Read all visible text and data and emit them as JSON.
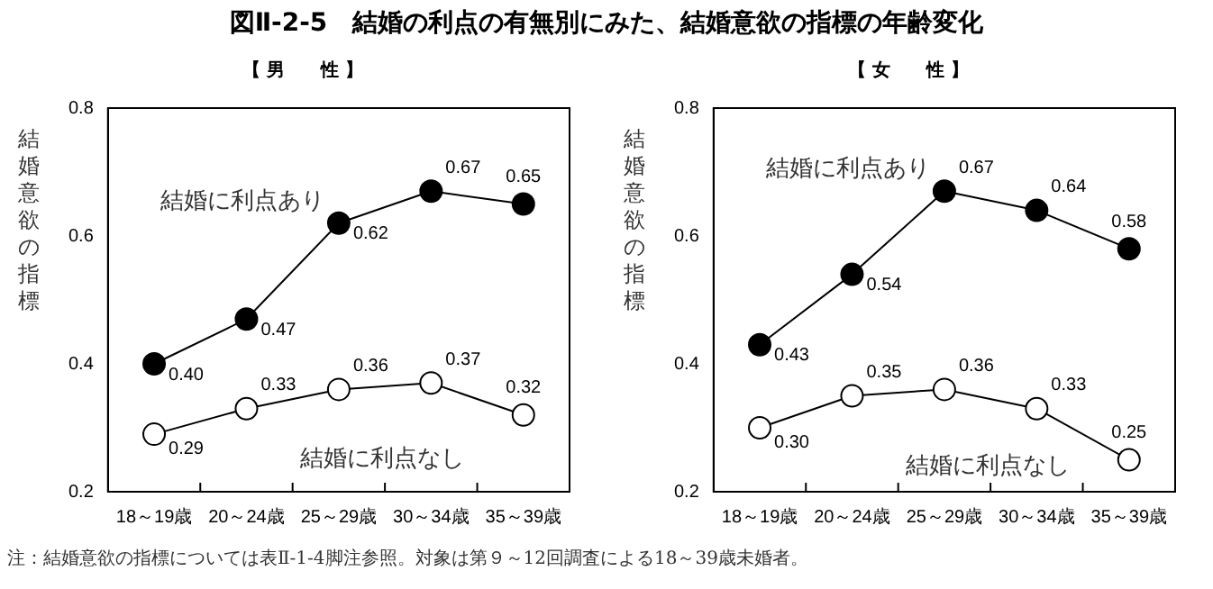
{
  "chart_data": [
    {
      "type": "line",
      "title": "図Ⅱ-2-5　結婚の利点の有無別にみた、結婚意欲の指標の年齢変化",
      "subtitle": "【 男　　性 】",
      "ylabel": "結婚意欲の指標",
      "categories": [
        "18～19歳",
        "20～24歳",
        "25～29歳",
        "30～34歳",
        "35～39歳"
      ],
      "series": [
        {
          "name": "結婚に利点あり",
          "color": "#000000",
          "values": [
            0.4,
            0.47,
            0.62,
            0.67,
            0.65
          ],
          "value_labels": [
            "0.40",
            "0.47",
            "0.62",
            "0.67",
            "0.65"
          ]
        },
        {
          "name": "結婚に利点なし",
          "color": "#ffffff",
          "values": [
            0.29,
            0.33,
            0.36,
            0.37,
            0.32
          ],
          "value_labels": [
            "0.29",
            "0.33",
            "0.36",
            "0.37",
            "0.32"
          ]
        }
      ],
      "ylim": [
        0.2,
        0.8
      ],
      "yticks": [
        0.2,
        0.4,
        0.6,
        0.8
      ],
      "marker": "circle",
      "grid": false,
      "legend": false,
      "annotations": [
        "注：結婚意欲の指標については表Ⅱ-1-4脚注参照。対象は第９～12回調査による18～39歳未婚者。"
      ]
    },
    {
      "type": "line",
      "subtitle": "【 女　　性 】",
      "ylabel": "結婚意欲の指標",
      "categories": [
        "18～19歳",
        "20～24歳",
        "25～29歳",
        "30～34歳",
        "35～39歳"
      ],
      "series": [
        {
          "name": "結婚に利点あり",
          "color": "#000000",
          "values": [
            0.43,
            0.54,
            0.67,
            0.64,
            0.58
          ],
          "value_labels": [
            "0.43",
            "0.54",
            "0.67",
            "0.64",
            "0.58"
          ]
        },
        {
          "name": "結婚に利点なし",
          "color": "#ffffff",
          "values": [
            0.3,
            0.35,
            0.36,
            0.33,
            0.25
          ],
          "value_labels": [
            "0.30",
            "0.35",
            "0.36",
            "0.33",
            "0.25"
          ]
        }
      ],
      "ylim": [
        0.2,
        0.8
      ],
      "yticks": [
        0.2,
        0.4,
        0.6,
        0.8
      ],
      "marker": "circle",
      "grid": false,
      "legend": false
    }
  ]
}
